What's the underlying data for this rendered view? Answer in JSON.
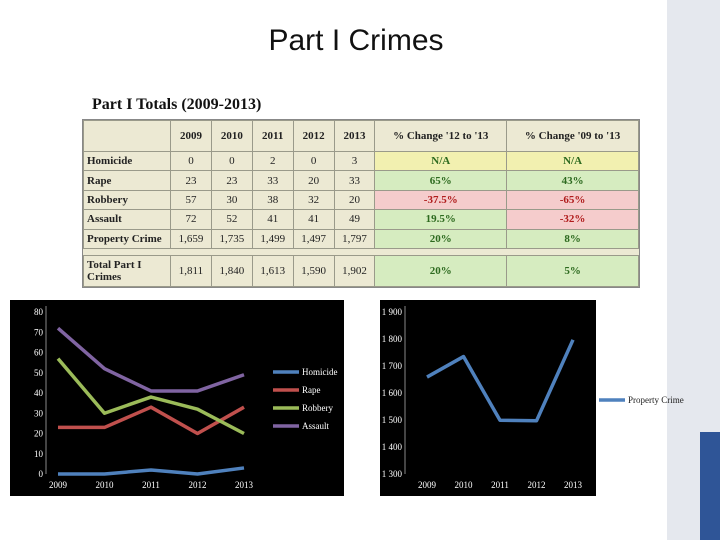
{
  "slide": {
    "title": "Part I Crimes"
  },
  "table": {
    "title": "Part I Totals (2009-2013)",
    "columns": [
      "",
      "2009",
      "2010",
      "2011",
      "2012",
      "2013",
      "% Change '12 to '13",
      "% Change '09 to '13"
    ],
    "rows": [
      {
        "label": "Homicide",
        "values": [
          "0",
          "0",
          "2",
          "0",
          "3"
        ],
        "change_12_13": "N/A",
        "change_09_13": "N/A",
        "c1": "yellow",
        "c2": "yellow"
      },
      {
        "label": "Rape",
        "values": [
          "23",
          "23",
          "33",
          "20",
          "33"
        ],
        "change_12_13": "65%",
        "change_09_13": "43%",
        "c1": "green",
        "c2": "green"
      },
      {
        "label": "Robbery",
        "values": [
          "57",
          "30",
          "38",
          "32",
          "20"
        ],
        "change_12_13": "-37.5%",
        "change_09_13": "-65%",
        "c1": "red",
        "c2": "red"
      },
      {
        "label": "Assault",
        "values": [
          "72",
          "52",
          "41",
          "41",
          "49"
        ],
        "change_12_13": "19.5%",
        "change_09_13": "-32%",
        "c1": "green",
        "c2": "red"
      },
      {
        "label": "Property Crime",
        "values": [
          "1,659",
          "1,735",
          "1,499",
          "1,497",
          "1,797"
        ],
        "change_12_13": "20%",
        "change_09_13": "8%",
        "c1": "green",
        "c2": "green"
      }
    ],
    "total": {
      "label": "Total Part I Crimes",
      "values": [
        "1,811",
        "1,840",
        "1,613",
        "1,590",
        "1,902"
      ],
      "change_12_13": "20%",
      "change_09_13": "5%",
      "c1": "green",
      "c2": "green"
    }
  },
  "chart_data": [
    {
      "type": "line",
      "categories": [
        "2009",
        "2010",
        "2011",
        "2012",
        "2013"
      ],
      "ylim": [
        0,
        80
      ],
      "yticks": [
        0,
        10,
        20,
        30,
        40,
        50,
        60,
        70,
        80
      ],
      "legend": "right",
      "series": [
        {
          "name": "Homicide",
          "values": [
            0,
            0,
            2,
            0,
            3
          ],
          "color": "#4f81bd"
        },
        {
          "name": "Rape",
          "values": [
            23,
            23,
            33,
            20,
            33
          ],
          "color": "#c0504d"
        },
        {
          "name": "Robbery",
          "values": [
            57,
            30,
            38,
            32,
            20
          ],
          "color": "#9bbb59"
        },
        {
          "name": "Assault",
          "values": [
            72,
            52,
            41,
            41,
            49
          ],
          "color": "#8064a2"
        }
      ]
    },
    {
      "type": "line",
      "categories": [
        "2009",
        "2010",
        "2011",
        "2012",
        "2013"
      ],
      "ylim": [
        1300,
        1900
      ],
      "yticks": [
        1300,
        1400,
        1500,
        1600,
        1700,
        1800,
        1900
      ],
      "ytick_labels": [
        "1 300",
        "1 400",
        "1 500",
        "1 600",
        "1 700",
        "1 800",
        "1 900"
      ],
      "legend": "right",
      "series": [
        {
          "name": "Property Crime",
          "values": [
            1659,
            1735,
            1499,
            1497,
            1797
          ],
          "color": "#4f81bd"
        }
      ]
    }
  ]
}
